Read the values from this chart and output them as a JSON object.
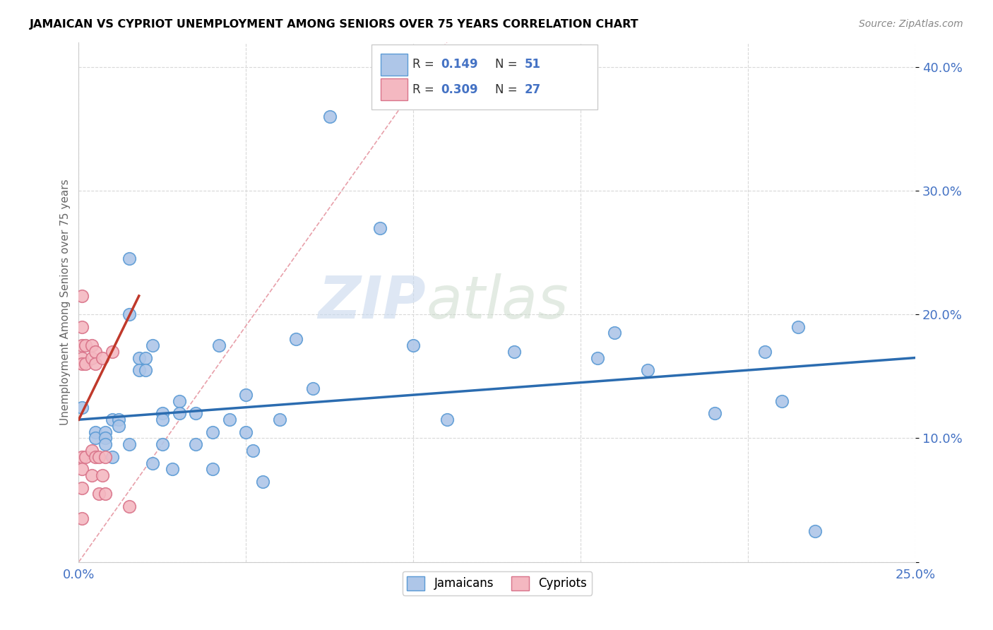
{
  "title": "JAMAICAN VS CYPRIOT UNEMPLOYMENT AMONG SENIORS OVER 75 YEARS CORRELATION CHART",
  "source": "Source: ZipAtlas.com",
  "ylabel": "Unemployment Among Seniors over 75 years",
  "xlim": [
    0.0,
    0.25
  ],
  "ylim": [
    0.0,
    0.42
  ],
  "xticks": [
    0.0,
    0.05,
    0.1,
    0.15,
    0.2,
    0.25
  ],
  "yticks": [
    0.0,
    0.1,
    0.2,
    0.3,
    0.4
  ],
  "background_color": "#ffffff",
  "grid_color": "#d8d8d8",
  "watermark_zip": "ZIP",
  "watermark_atlas": "atlas",
  "jamaican_color": "#aec6e8",
  "jamaican_edge_color": "#5b9bd5",
  "cypriot_color": "#f4b8c1",
  "cypriot_edge_color": "#d9748a",
  "jamaican_trend_color": "#2b6cb0",
  "cypriot_trend_color": "#c0392b",
  "ref_line_color": "#e8a0aa",
  "r1_val": "0.149",
  "n1_val": "51",
  "r2_val": "0.309",
  "n2_val": "27",
  "stat_color": "#4472c4",
  "jamaicans_x": [
    0.001,
    0.005,
    0.005,
    0.008,
    0.008,
    0.008,
    0.01,
    0.01,
    0.012,
    0.012,
    0.015,
    0.015,
    0.015,
    0.018,
    0.018,
    0.02,
    0.02,
    0.022,
    0.022,
    0.025,
    0.025,
    0.025,
    0.028,
    0.03,
    0.03,
    0.035,
    0.035,
    0.04,
    0.04,
    0.042,
    0.045,
    0.05,
    0.05,
    0.052,
    0.055,
    0.06,
    0.065,
    0.07,
    0.075,
    0.09,
    0.1,
    0.11,
    0.13,
    0.155,
    0.16,
    0.17,
    0.19,
    0.205,
    0.21,
    0.215,
    0.22
  ],
  "jamaicans_y": [
    0.125,
    0.105,
    0.1,
    0.105,
    0.1,
    0.095,
    0.115,
    0.085,
    0.115,
    0.11,
    0.245,
    0.2,
    0.095,
    0.165,
    0.155,
    0.165,
    0.155,
    0.175,
    0.08,
    0.12,
    0.115,
    0.095,
    0.075,
    0.13,
    0.12,
    0.12,
    0.095,
    0.105,
    0.075,
    0.175,
    0.115,
    0.135,
    0.105,
    0.09,
    0.065,
    0.115,
    0.18,
    0.14,
    0.36,
    0.27,
    0.175,
    0.115,
    0.17,
    0.165,
    0.185,
    0.155,
    0.12,
    0.17,
    0.13,
    0.19,
    0.025
  ],
  "cypriots_x": [
    0.001,
    0.001,
    0.001,
    0.001,
    0.001,
    0.001,
    0.001,
    0.001,
    0.001,
    0.002,
    0.002,
    0.002,
    0.004,
    0.004,
    0.004,
    0.004,
    0.005,
    0.005,
    0.005,
    0.006,
    0.006,
    0.007,
    0.007,
    0.008,
    0.008,
    0.01,
    0.015
  ],
  "cypriots_y": [
    0.215,
    0.19,
    0.175,
    0.165,
    0.16,
    0.085,
    0.075,
    0.06,
    0.035,
    0.175,
    0.16,
    0.085,
    0.175,
    0.165,
    0.09,
    0.07,
    0.17,
    0.16,
    0.085,
    0.085,
    0.055,
    0.165,
    0.07,
    0.085,
    0.055,
    0.17,
    0.045
  ],
  "jamaican_trend_x": [
    0.0,
    0.25
  ],
  "jamaican_trend_y": [
    0.115,
    0.165
  ],
  "cypriot_trend_x": [
    0.0,
    0.018
  ],
  "cypriot_trend_y": [
    0.115,
    0.215
  ],
  "ref_line_x": [
    0.0,
    0.11
  ],
  "ref_line_y": [
    0.0,
    0.42
  ]
}
